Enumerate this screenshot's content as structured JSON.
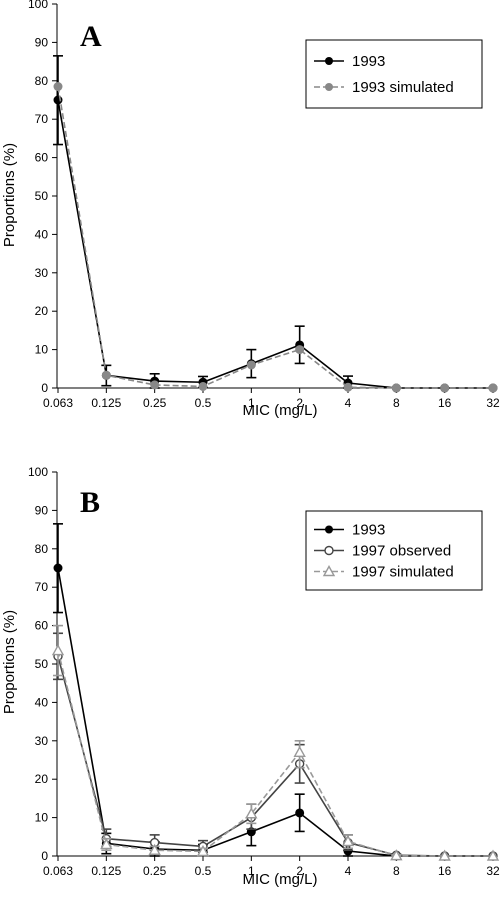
{
  "chart_data": [
    {
      "panel": "A",
      "type": "line",
      "xlabel": "MIC (mg/L)",
      "ylabel": "Proportions (%)",
      "categories": [
        "0.063",
        "0.125",
        "0.25",
        "0.5",
        "1",
        "2",
        "4",
        "8",
        "16",
        "32"
      ],
      "ylim": [
        0,
        100
      ],
      "yticks": [
        0,
        10,
        20,
        30,
        40,
        50,
        60,
        70,
        80,
        90,
        100
      ],
      "legend_position": "top-right",
      "series": [
        {
          "name": "1993",
          "values": [
            75,
            3.3,
            1.8,
            1.5,
            6.3,
            11.2,
            1.3,
            0,
            0,
            0
          ],
          "error_low": [
            63.4,
            0.6,
            0,
            0.1,
            2.7,
            6.4,
            0,
            0,
            0,
            0
          ],
          "error_high": [
            86.5,
            5.9,
            3.7,
            3.0,
            10.0,
            16.1,
            3.1,
            0,
            0,
            0
          ],
          "color": "#000000",
          "marker": "filled-circle",
          "linestyle": "solid"
        },
        {
          "name": "1993 simulated",
          "values": [
            78.5,
            3.3,
            0.8,
            0.4,
            6.0,
            10.0,
            0.2,
            0,
            0,
            0
          ],
          "color": "#888888",
          "marker": "filled-circle",
          "linestyle": "dashed"
        }
      ]
    },
    {
      "panel": "B",
      "type": "line",
      "xlabel": "MIC (mg/L)",
      "ylabel": "Proportions (%)",
      "categories": [
        "0.063",
        "0.125",
        "0.25",
        "0.5",
        "1",
        "2",
        "4",
        "8",
        "16",
        "32"
      ],
      "ylim": [
        0,
        100
      ],
      "yticks": [
        0,
        10,
        20,
        30,
        40,
        50,
        60,
        70,
        80,
        90,
        100
      ],
      "legend_position": "top-right",
      "series": [
        {
          "name": "1993",
          "values": [
            75,
            3.3,
            1.8,
            1.5,
            6.3,
            11.2,
            1.3,
            0,
            0,
            0
          ],
          "error_low": [
            63.4,
            0.6,
            0,
            0.1,
            2.7,
            6.4,
            0,
            0,
            0,
            0
          ],
          "error_high": [
            86.5,
            5.9,
            3.7,
            3.0,
            10.0,
            16.1,
            3.1,
            0,
            0,
            0
          ],
          "color": "#000000",
          "marker": "filled-circle",
          "linestyle": "solid"
        },
        {
          "name": "1997 observed",
          "values": [
            52,
            4.5,
            3.5,
            2.5,
            10.0,
            24.0,
            3.5,
            0.2,
            0,
            0
          ],
          "error_low": [
            46,
            2.5,
            1.5,
            1.0,
            7.0,
            19.0,
            1.5,
            0,
            0,
            0
          ],
          "error_high": [
            58,
            7.0,
            5.5,
            4.0,
            13.5,
            29.0,
            5.5,
            0.5,
            0,
            0
          ],
          "color": "#444444",
          "marker": "open-circle",
          "linestyle": "solid"
        },
        {
          "name": "1997 simulated",
          "values": [
            53.5,
            3.0,
            1.5,
            1.2,
            11.0,
            27.0,
            3.8,
            0.1,
            0,
            0
          ],
          "error_low": [
            47,
            1.5,
            0.5,
            0.4,
            8.5,
            23.0,
            2.0,
            0,
            0,
            0
          ],
          "error_high": [
            60,
            4.5,
            2.5,
            2.0,
            13.5,
            30.0,
            5.5,
            0.3,
            0,
            0
          ],
          "color": "#999999",
          "marker": "open-triangle",
          "linestyle": "dashed"
        }
      ]
    }
  ]
}
